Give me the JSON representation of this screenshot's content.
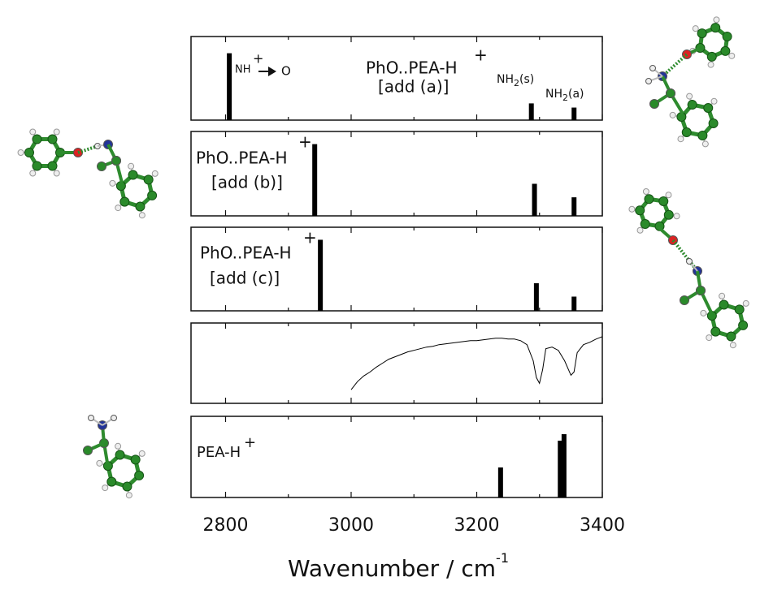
{
  "chart_data": [
    {
      "type": "bar",
      "x": [
        2806,
        3287,
        3355
      ],
      "values": [
        0.8,
        0.2,
        0.15
      ],
      "color": "#000000",
      "xlim": [
        2745,
        3400
      ],
      "ylim": [
        0,
        1
      ],
      "label": "PhO..PEA-H",
      "label_sup": "+",
      "sublabel": "[add (a)]",
      "annotation": {
        "text": "NH",
        "sup": "+",
        "target": "O"
      },
      "peak_labels": [
        {
          "base": "NH",
          "sub": "2",
          "suffix": "(s)"
        },
        {
          "base": "NH",
          "sub": "2",
          "suffix": "(a)"
        }
      ]
    },
    {
      "type": "bar",
      "x": [
        2942,
        3292,
        3355
      ],
      "values": [
        0.85,
        0.38,
        0.22
      ],
      "color": "#000000",
      "xlim": [
        2745,
        3400
      ],
      "ylim": [
        0,
        1
      ],
      "label": "PhO..PEA-H",
      "label_sup": "+",
      "sublabel": "[add (b)]"
    },
    {
      "type": "bar",
      "x": [
        2951,
        3295,
        3355
      ],
      "values": [
        0.85,
        0.33,
        0.17
      ],
      "color": "#000000",
      "xlim": [
        2745,
        3400
      ],
      "ylim": [
        0,
        1
      ],
      "label": "PhO..PEA-H",
      "label_sup": "+",
      "sublabel": "[add (c)]"
    },
    {
      "type": "line",
      "color": "#000000",
      "xlim": [
        2745,
        3400
      ],
      "ylim": [
        0,
        1
      ],
      "x": [
        3000,
        3010,
        3020,
        3030,
        3040,
        3050,
        3060,
        3070,
        3080,
        3090,
        3100,
        3110,
        3120,
        3130,
        3140,
        3150,
        3160,
        3170,
        3180,
        3190,
        3200,
        3210,
        3220,
        3230,
        3240,
        3250,
        3260,
        3270,
        3280,
        3290,
        3295,
        3300,
        3305,
        3310,
        3320,
        3330,
        3340,
        3350,
        3355,
        3360,
        3370,
        3380,
        3390,
        3400
      ],
      "values": [
        0.17,
        0.27,
        0.34,
        0.39,
        0.45,
        0.5,
        0.55,
        0.58,
        0.61,
        0.64,
        0.66,
        0.68,
        0.7,
        0.71,
        0.73,
        0.74,
        0.75,
        0.76,
        0.77,
        0.78,
        0.78,
        0.79,
        0.8,
        0.81,
        0.81,
        0.8,
        0.8,
        0.78,
        0.73,
        0.53,
        0.32,
        0.25,
        0.42,
        0.68,
        0.7,
        0.66,
        0.53,
        0.35,
        0.39,
        0.63,
        0.73,
        0.76,
        0.8,
        0.83
      ]
    },
    {
      "type": "bar",
      "x": [
        3238,
        3333,
        3339
      ],
      "values": [
        0.37,
        0.7,
        0.78
      ],
      "color": "#000000",
      "xlim": [
        2745,
        3400
      ],
      "ylim": [
        0,
        1
      ],
      "label": "PEA-H",
      "label_sup": "+",
      "xticks": [
        2800,
        3000,
        3200,
        3400
      ],
      "xticks_minor": [
        2900,
        3100,
        3300
      ],
      "xlabel": "Wavenumber / cm",
      "xlabel_sup": "-1"
    }
  ]
}
